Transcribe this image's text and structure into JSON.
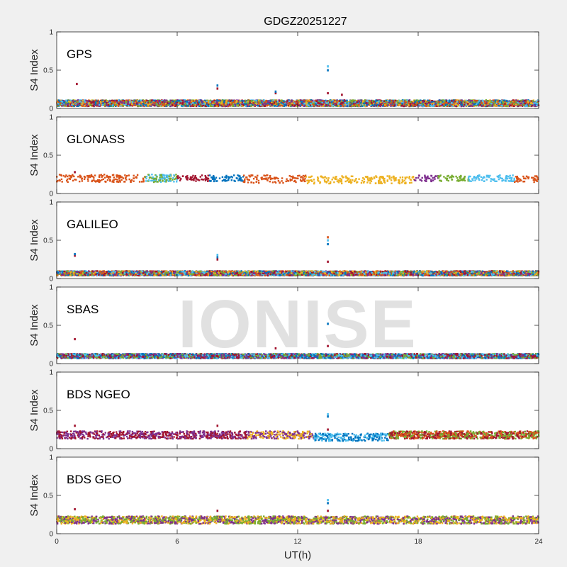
{
  "watermark": "IONISE",
  "chart_data": {
    "type": "scatter",
    "title": "GDGZ20251227",
    "xlabel": "UT(h)",
    "ylabel": "S4 Index",
    "xlim": [
      0,
      24
    ],
    "ylim": [
      0,
      1
    ],
    "x_ticks": [
      0,
      6,
      12,
      18,
      24
    ],
    "y_ticks": [
      "0",
      "0.5",
      "1"
    ],
    "grid": false,
    "series_colors": [
      "#0072BD",
      "#D95319",
      "#EDB120",
      "#7E2F8E",
      "#77AC30",
      "#4DBEEE",
      "#A2142F"
    ],
    "panels": [
      {
        "label": "GPS",
        "segments": [
          {
            "x": [
              0,
              24
            ],
            "base": 0.07,
            "amp": 0.04,
            "colors": [
              0,
              1,
              2,
              3,
              4,
              5,
              6
            ]
          }
        ],
        "spikes": [
          {
            "x": 1.0,
            "y": [
              0.32
            ]
          },
          {
            "x": 8.0,
            "y": [
              0.26,
              0.3
            ]
          },
          {
            "x": 10.9,
            "y": [
              0.2,
              0.22
            ]
          },
          {
            "x": 13.5,
            "y": [
              0.2,
              0.5,
              0.55
            ]
          },
          {
            "x": 14.2,
            "y": [
              0.18
            ]
          }
        ]
      },
      {
        "label": "GLONASS",
        "segments": [
          {
            "x": [
              0,
              4.4
            ],
            "base": 0.2,
            "amp": 0.05,
            "colors": [
              1
            ]
          },
          {
            "x": 4.4,
            "x_end": 6.0,
            "base": 0.2,
            "amp": 0.05,
            "colors": [
              5,
              4
            ]
          },
          {
            "x": 6.0,
            "x_end": 7.6,
            "base": 0.2,
            "amp": 0.04,
            "colors": [
              6
            ]
          },
          {
            "x": 7.6,
            "x_end": 9.3,
            "base": 0.2,
            "amp": 0.04,
            "colors": [
              0
            ]
          },
          {
            "x": 9.3,
            "x_end": 12.4,
            "base": 0.19,
            "amp": 0.05,
            "colors": [
              1
            ]
          },
          {
            "x": 12.4,
            "x_end": 17.8,
            "base": 0.18,
            "amp": 0.05,
            "colors": [
              2
            ]
          },
          {
            "x": 17.8,
            "x_end": 19.0,
            "base": 0.2,
            "amp": 0.04,
            "colors": [
              3
            ]
          },
          {
            "x": 19.0,
            "x_end": 20.5,
            "base": 0.2,
            "amp": 0.04,
            "colors": [
              4
            ]
          },
          {
            "x": 20.5,
            "x_end": 22.8,
            "base": 0.2,
            "amp": 0.04,
            "colors": [
              5
            ]
          },
          {
            "x": 22.8,
            "x_end": 24.0,
            "base": 0.19,
            "amp": 0.04,
            "colors": [
              1
            ]
          }
        ],
        "spikes": [
          {
            "x": 0.9,
            "y": [
              0.28
            ]
          }
        ]
      },
      {
        "label": "GALILEO",
        "segments": [
          {
            "x": [
              0,
              24
            ],
            "base": 0.07,
            "amp": 0.03,
            "colors": [
              0,
              1,
              2,
              3,
              4,
              5,
              6
            ]
          }
        ],
        "spikes": [
          {
            "x": 0.9,
            "y": [
              0.3,
              0.32
            ]
          },
          {
            "x": 8.0,
            "y": [
              0.25,
              0.28,
              0.31
            ]
          },
          {
            "x": 13.5,
            "y": [
              0.22,
              0.45,
              0.5,
              0.54
            ]
          }
        ]
      },
      {
        "label": "SBAS",
        "segments": [
          {
            "x": [
              0,
              24
            ],
            "base": 0.1,
            "amp": 0.03,
            "colors": [
              0,
              6,
              3,
              4,
              5
            ]
          }
        ],
        "spikes": [
          {
            "x": 0.9,
            "y": [
              0.32
            ]
          },
          {
            "x": 10.9,
            "y": [
              0.2
            ]
          },
          {
            "x": 13.5,
            "y": [
              0.23,
              0.52
            ]
          }
        ]
      },
      {
        "label": "BDS NGEO",
        "segments": [
          {
            "x": 0,
            "x_end": 9.5,
            "base": 0.18,
            "amp": 0.05,
            "colors": [
              6,
              3
            ]
          },
          {
            "x": 9.5,
            "x_end": 12.8,
            "base": 0.18,
            "amp": 0.05,
            "colors": [
              2,
              3
            ]
          },
          {
            "x": 12.8,
            "x_end": 16.5,
            "base": 0.15,
            "amp": 0.05,
            "colors": [
              5,
              0
            ]
          },
          {
            "x": 16.5,
            "x_end": 24.0,
            "base": 0.18,
            "amp": 0.05,
            "colors": [
              1,
              4,
              6
            ]
          }
        ],
        "spikes": [
          {
            "x": 0.9,
            "y": [
              0.3
            ]
          },
          {
            "x": 8.0,
            "y": [
              0.3
            ]
          },
          {
            "x": 13.5,
            "y": [
              0.25,
              0.42,
              0.45
            ]
          }
        ]
      },
      {
        "label": "BDS GEO",
        "segments": [
          {
            "x": [
              0,
              24
            ],
            "base": 0.18,
            "amp": 0.05,
            "colors": [
              4,
              3,
              2
            ]
          }
        ],
        "spikes": [
          {
            "x": 0.9,
            "y": [
              0.32
            ]
          },
          {
            "x": 8.0,
            "y": [
              0.3
            ]
          },
          {
            "x": 13.5,
            "y": [
              0.3,
              0.4,
              0.44
            ]
          }
        ]
      }
    ]
  }
}
